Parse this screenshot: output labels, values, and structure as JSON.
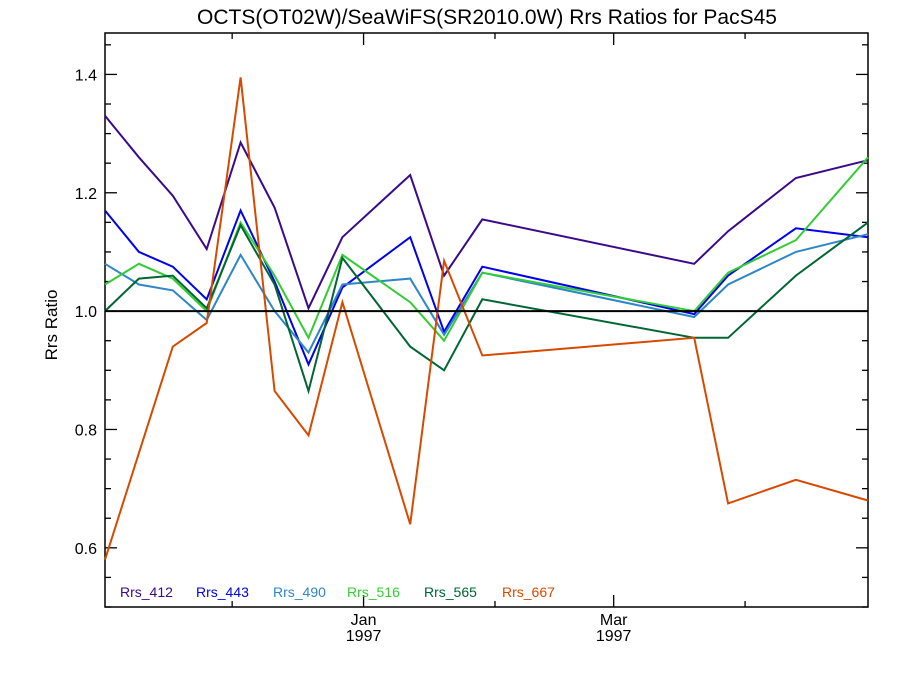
{
  "chart_data": {
    "type": "line",
    "title": "OCTS(OT02W)/SeaWiFS(SR2010.0W)  Rrs Ratios for PacS45",
    "ylabel": "Rrs Ratio",
    "xlabel": "",
    "x_axis": "date",
    "xlim": [
      "1996-11-01",
      "1997-04-30"
    ],
    "ylim": [
      0.5,
      1.47
    ],
    "y_ticks": [
      0.6,
      0.8,
      1.0,
      1.2,
      1.4
    ],
    "y_tick_labels": [
      "0.6",
      "0.8",
      "1.0",
      "1.2",
      "1.4"
    ],
    "y_minor_step": 0.05,
    "x_ticks": [
      {
        "date": "1997-01-01",
        "label": "Jan",
        "label2": "1997"
      },
      {
        "date": "1997-03-01",
        "label": "Mar",
        "label2": "1997"
      }
    ],
    "x_minor_ticks": [
      "1996-12-01",
      "1997-02-01",
      "1997-04-01"
    ],
    "reference_line": 1.0,
    "legend_placement": "bottom-left",
    "grid": false,
    "x": [
      "1996-11-01",
      "1996-11-09",
      "1996-11-17",
      "1996-11-25",
      "1996-12-03",
      "1996-12-11",
      "1996-12-19",
      "1996-12-27",
      "1997-01-12",
      "1997-01-20",
      "1997-01-29",
      "1997-03-20",
      "1997-03-28",
      "1997-04-13",
      "1997-04-30"
    ],
    "series": [
      {
        "name": "Rrs_412",
        "color": "#3a0a8a",
        "values": [
          1.33,
          1.26,
          1.195,
          1.105,
          1.285,
          1.175,
          1.005,
          1.125,
          1.23,
          1.06,
          1.155,
          1.08,
          1.135,
          1.225,
          1.255
        ]
      },
      {
        "name": "Rrs_443",
        "color": "#0000ee",
        "values": [
          1.17,
          1.1,
          1.075,
          1.02,
          1.17,
          1.05,
          0.91,
          1.04,
          1.125,
          0.965,
          1.075,
          0.995,
          1.06,
          1.14,
          1.125
        ]
      },
      {
        "name": "Rrs_490",
        "color": "#2e86c8",
        "values": [
          1.08,
          1.045,
          1.035,
          0.985,
          1.095,
          1.0,
          0.93,
          1.045,
          1.055,
          0.96,
          1.065,
          0.99,
          1.045,
          1.1,
          1.13
        ]
      },
      {
        "name": "Rrs_516",
        "color": "#33cc33",
        "values": [
          1.045,
          1.08,
          1.055,
          1.0,
          1.15,
          1.06,
          0.955,
          1.095,
          1.015,
          0.95,
          1.065,
          1.0,
          1.065,
          1.12,
          1.26
        ]
      },
      {
        "name": "Rrs_565",
        "color": "#006633",
        "values": [
          1.0,
          1.055,
          1.06,
          1.005,
          1.145,
          1.045,
          0.865,
          1.09,
          0.94,
          0.9,
          1.02,
          0.955,
          0.955,
          1.06,
          1.15
        ]
      },
      {
        "name": "Rrs_667",
        "color": "#d64a00",
        "values": [
          0.58,
          0.76,
          0.94,
          0.98,
          1.395,
          0.865,
          0.79,
          1.015,
          0.64,
          1.085,
          0.925,
          0.955,
          0.675,
          0.715,
          0.68
        ]
      }
    ]
  }
}
